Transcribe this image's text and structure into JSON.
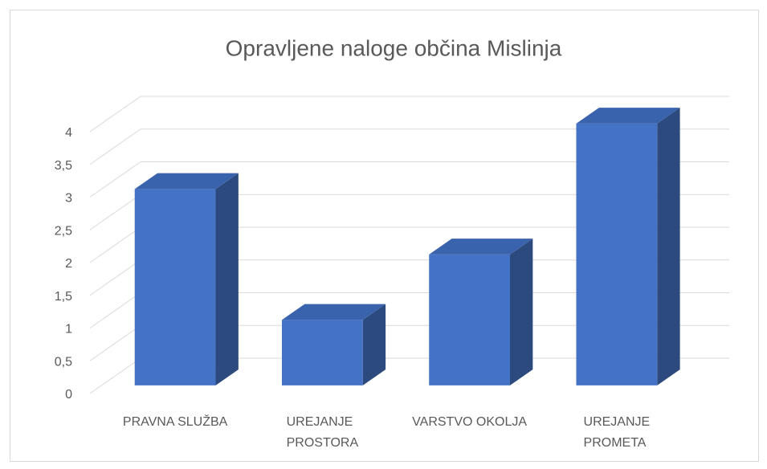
{
  "chart_data": {
    "type": "bar3d",
    "title": "Opravljene naloge občina Mislinja",
    "categories": [
      "PRAVNA SLUŽBA",
      "UREJANJE PROSTORA",
      "VARSTVO OKOLJA",
      "UREJANJE PROMETA"
    ],
    "values": [
      3,
      1,
      2,
      4
    ],
    "color": "#4472c4",
    "ylim": [
      0,
      4
    ],
    "yticks": [
      0,
      {
        "value": 0.5,
        "label": "0,5"
      },
      1,
      {
        "value": 1.5,
        "label": "1,5"
      },
      2,
      {
        "value": 2.5,
        "label": "2,5"
      },
      3,
      {
        "value": 3.5,
        "label": "3,5"
      },
      4
    ],
    "grid": true
  }
}
